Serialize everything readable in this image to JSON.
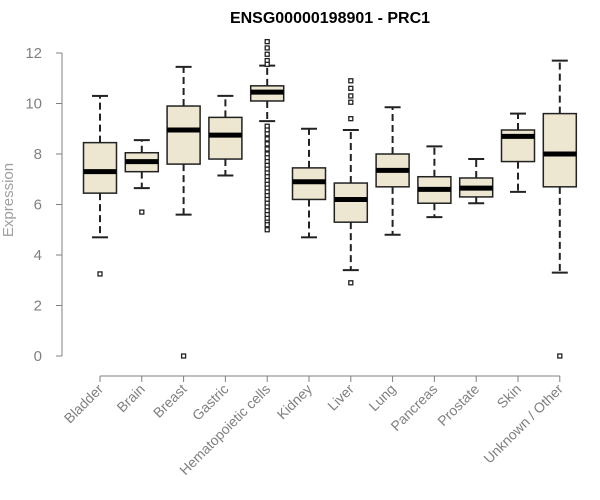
{
  "chart_data": {
    "type": "box",
    "title": "ENSG00000198901 - PRC1",
    "xlabel": "",
    "ylabel": "Expression",
    "ylim": [
      0,
      12
    ],
    "yticks": [
      "0",
      "2",
      "4",
      "6",
      "8",
      "10",
      "12"
    ],
    "grid": false,
    "colors": {
      "box_fill": "#ede6d0",
      "box_stroke": "#222222",
      "median": "#000000",
      "axis": "#808080",
      "tick_label": "#808080",
      "axis_title": "#a0a0a0"
    },
    "categories": [
      "Bladder",
      "Brain",
      "Breast",
      "Gastric",
      "Hematopoietic cells",
      "Kidney",
      "Liver",
      "Lung",
      "Pancreas",
      "Prostate",
      "Skin",
      "Unknown / Other"
    ],
    "boxes": [
      {
        "category": "Bladder",
        "whisker_low": 4.7,
        "q1": 6.45,
        "median": 7.3,
        "q3": 8.45,
        "whisker_high": 10.3,
        "outliers": [
          3.25
        ]
      },
      {
        "category": "Brain",
        "whisker_low": 6.65,
        "q1": 7.3,
        "median": 7.7,
        "q3": 8.05,
        "whisker_high": 8.55,
        "outliers": [
          5.7
        ]
      },
      {
        "category": "Breast",
        "whisker_low": 5.6,
        "q1": 7.6,
        "median": 8.95,
        "q3": 9.9,
        "whisker_high": 11.45,
        "outliers": [
          0.0
        ]
      },
      {
        "category": "Gastric",
        "whisker_low": 7.15,
        "q1": 7.8,
        "median": 8.75,
        "q3": 9.45,
        "whisker_high": 10.3,
        "outliers": []
      },
      {
        "category": "Hematopoietic cells",
        "whisker_low": 9.3,
        "q1": 10.1,
        "median": 10.45,
        "q3": 10.7,
        "whisker_high": 11.5,
        "outliers": [
          12.45,
          12.2,
          11.95,
          11.7,
          11.55,
          9.1,
          8.95,
          8.8,
          8.6,
          8.4,
          8.2,
          8.0,
          7.85,
          7.7,
          7.55,
          7.4,
          7.25,
          7.1,
          6.95,
          6.8,
          6.65,
          6.5,
          6.35,
          6.2,
          6.05,
          5.9,
          5.75,
          5.6,
          5.45,
          5.3,
          5.2,
          5.0
        ]
      },
      {
        "category": "Kidney",
        "whisker_low": 4.7,
        "q1": 6.2,
        "median": 6.9,
        "q3": 7.45,
        "whisker_high": 9.0,
        "outliers": []
      },
      {
        "category": "Liver",
        "whisker_low": 3.4,
        "q1": 5.3,
        "median": 6.2,
        "q3": 6.85,
        "whisker_high": 8.95,
        "outliers": [
          10.9,
          10.6,
          10.3,
          10.05,
          9.4,
          2.9
        ]
      },
      {
        "category": "Lung",
        "whisker_low": 4.8,
        "q1": 6.7,
        "median": 7.35,
        "q3": 8.0,
        "whisker_high": 9.85,
        "outliers": []
      },
      {
        "category": "Pancreas",
        "whisker_low": 5.5,
        "q1": 6.05,
        "median": 6.6,
        "q3": 7.1,
        "whisker_high": 8.3,
        "outliers": []
      },
      {
        "category": "Prostate",
        "whisker_low": 6.05,
        "q1": 6.3,
        "median": 6.65,
        "q3": 7.05,
        "whisker_high": 7.8,
        "outliers": []
      },
      {
        "category": "Skin",
        "whisker_low": 6.5,
        "q1": 7.7,
        "median": 8.7,
        "q3": 8.95,
        "whisker_high": 9.6,
        "outliers": []
      },
      {
        "category": "Unknown / Other",
        "whisker_low": 3.3,
        "q1": 6.7,
        "median": 8.0,
        "q3": 9.6,
        "whisker_high": 11.7,
        "outliers": [
          0.0
        ]
      }
    ]
  }
}
